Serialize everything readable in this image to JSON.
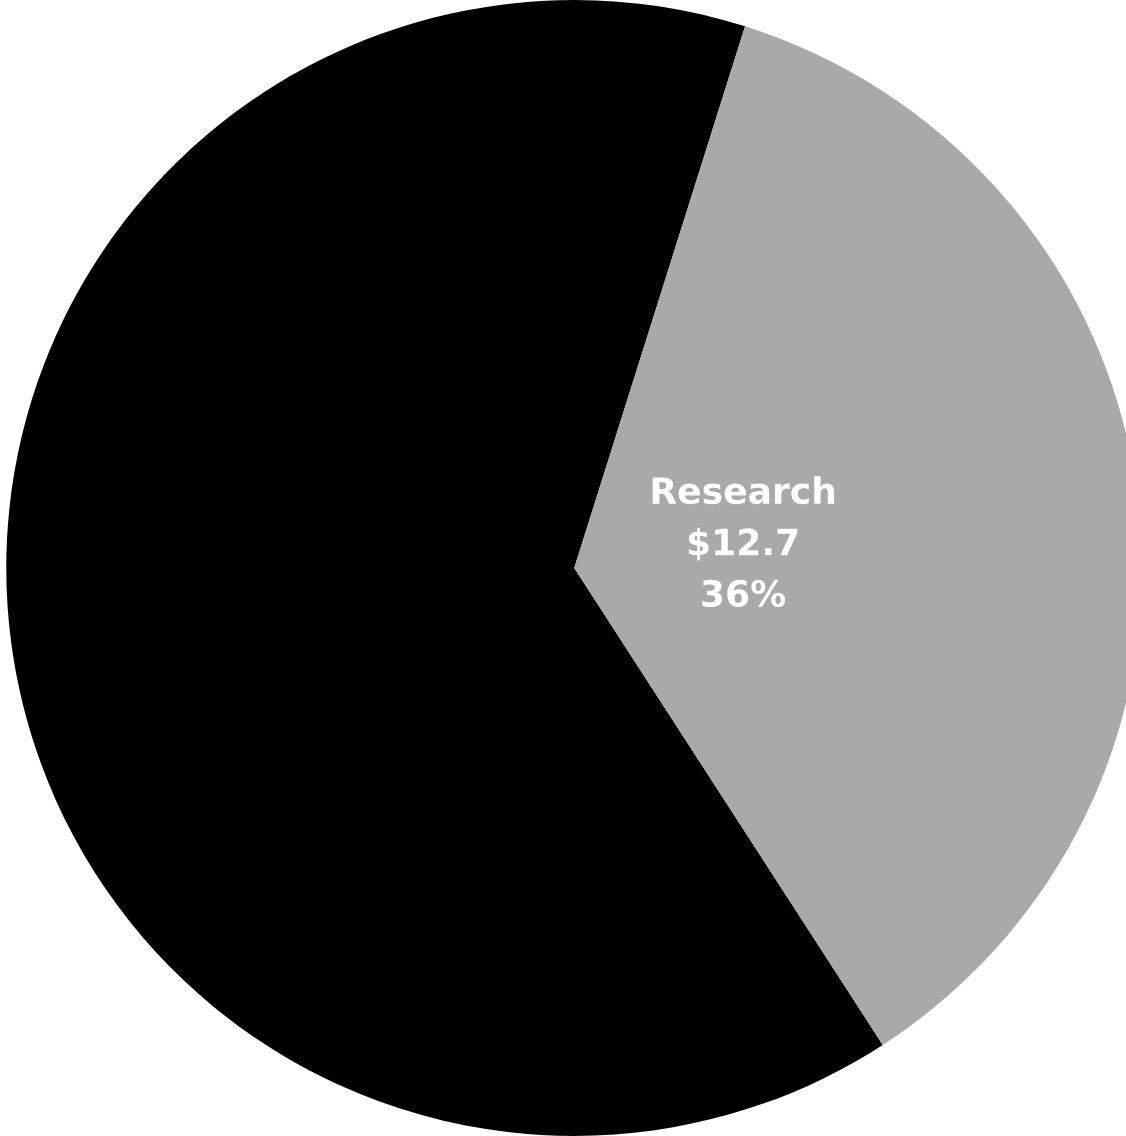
{
  "chart_data": {
    "type": "pie",
    "categories": [
      null,
      "Research"
    ],
    "values": [
      64,
      36
    ],
    "colors": [
      "#000000",
      "#a9a9a9"
    ],
    "value_labels": [
      null,
      "$12.7\n36%"
    ]
  }
}
